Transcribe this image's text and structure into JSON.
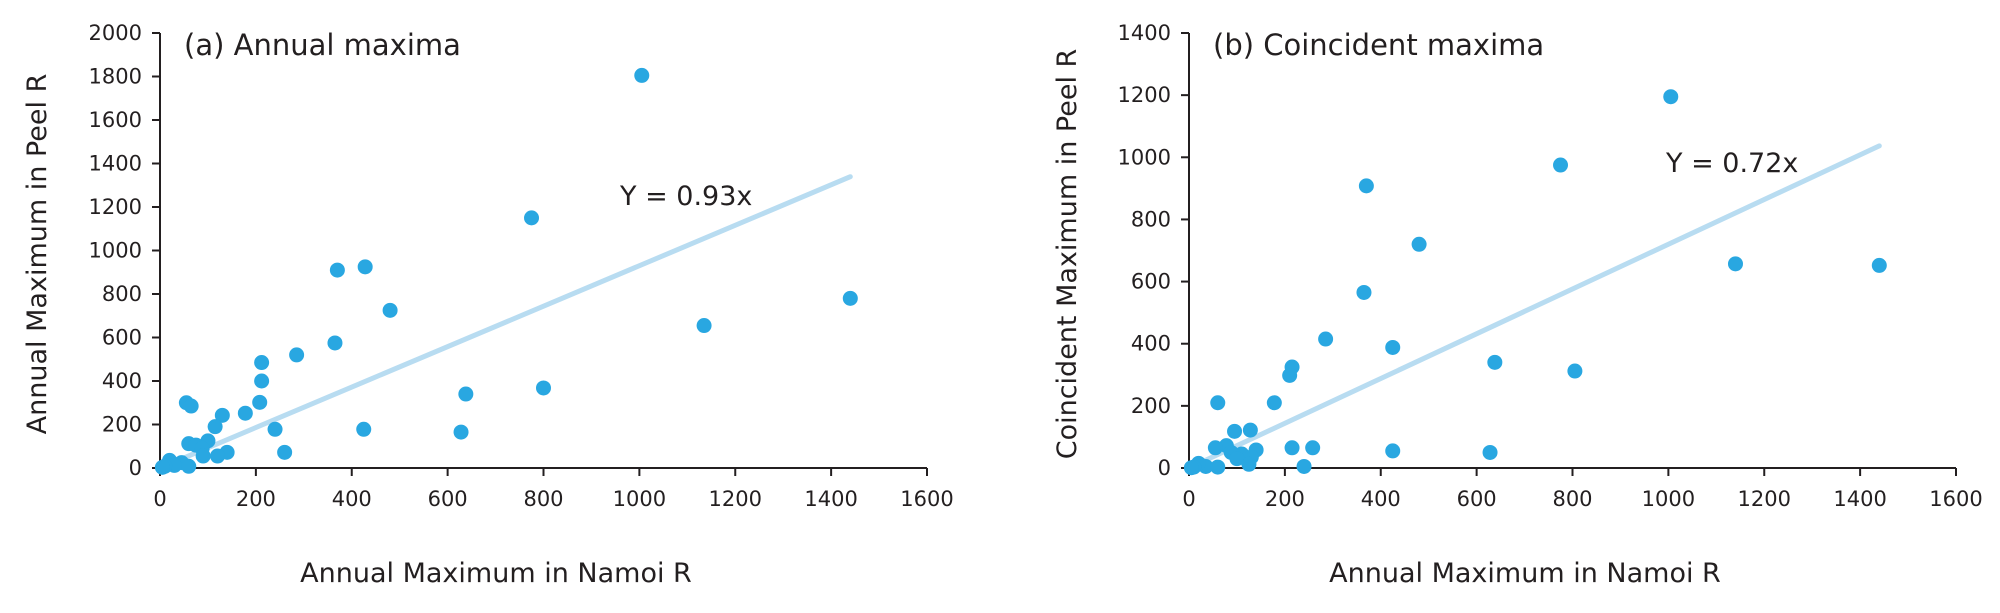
{
  "chart_data": [
    {
      "type": "scatter",
      "title": "(a) Annual maxima",
      "xlabel": "Annual Maximum in Namoi R",
      "ylabel": "Annual Maximum in Peel R",
      "xlim": [
        0,
        1600
      ],
      "ylim": [
        0,
        2000
      ],
      "xticks": [
        0,
        200,
        400,
        600,
        800,
        1000,
        1200,
        1400,
        1600
      ],
      "yticks": [
        0,
        200,
        400,
        600,
        800,
        1000,
        1200,
        1400,
        1600,
        1800,
        2000
      ],
      "fit": {
        "label": "Y = 0.93x",
        "slope": 0.93,
        "x_range": [
          0,
          1440
        ]
      },
      "points": [
        [
          1005,
          1805
        ],
        [
          775,
          1150
        ],
        [
          428,
          925
        ],
        [
          370,
          910
        ],
        [
          480,
          725
        ],
        [
          1440,
          780
        ],
        [
          365,
          575
        ],
        [
          1135,
          655
        ],
        [
          285,
          520
        ],
        [
          212,
          485
        ],
        [
          212,
          400
        ],
        [
          800,
          368
        ],
        [
          638,
          340
        ],
        [
          208,
          302
        ],
        [
          55,
          300
        ],
        [
          65,
          285
        ],
        [
          130,
          242
        ],
        [
          178,
          252
        ],
        [
          115,
          190
        ],
        [
          240,
          178
        ],
        [
          425,
          178
        ],
        [
          628,
          165
        ],
        [
          100,
          125
        ],
        [
          60,
          112
        ],
        [
          75,
          105
        ],
        [
          88,
          90
        ],
        [
          140,
          72
        ],
        [
          260,
          72
        ],
        [
          120,
          55
        ],
        [
          90,
          55
        ],
        [
          20,
          35
        ],
        [
          45,
          25
        ],
        [
          60,
          8
        ],
        [
          30,
          12
        ],
        [
          10,
          8
        ],
        [
          5,
          3
        ]
      ]
    },
    {
      "type": "scatter",
      "title": "(b) Coincident maxima",
      "xlabel": "Annual Maximum in Namoi R",
      "ylabel": "Coincident Maximum in Peel R",
      "xlim": [
        0,
        1600
      ],
      "ylim": [
        0,
        1400
      ],
      "xticks": [
        0,
        200,
        400,
        600,
        800,
        1000,
        1200,
        1400,
        1600
      ],
      "yticks": [
        0,
        200,
        400,
        600,
        800,
        1000,
        1200,
        1400
      ],
      "fit": {
        "label": "Y = 0.72x",
        "slope": 0.72,
        "x_range": [
          0,
          1440
        ]
      },
      "points": [
        [
          1005,
          1195
        ],
        [
          775,
          975
        ],
        [
          370,
          908
        ],
        [
          480,
          720
        ],
        [
          365,
          565
        ],
        [
          1140,
          657
        ],
        [
          1440,
          652
        ],
        [
          285,
          415
        ],
        [
          425,
          388
        ],
        [
          638,
          340
        ],
        [
          215,
          325
        ],
        [
          210,
          298
        ],
        [
          805,
          312
        ],
        [
          178,
          210
        ],
        [
          60,
          210
        ],
        [
          95,
          118
        ],
        [
          128,
          122
        ],
        [
          78,
          72
        ],
        [
          55,
          65
        ],
        [
          215,
          65
        ],
        [
          258,
          65
        ],
        [
          140,
          58
        ],
        [
          110,
          45
        ],
        [
          130,
          35
        ],
        [
          425,
          55
        ],
        [
          628,
          50
        ],
        [
          88,
          50
        ],
        [
          100,
          30
        ],
        [
          125,
          12
        ],
        [
          35,
          5
        ],
        [
          60,
          3
        ],
        [
          240,
          5
        ],
        [
          20,
          15
        ],
        [
          10,
          3
        ],
        [
          5,
          1
        ]
      ]
    }
  ]
}
